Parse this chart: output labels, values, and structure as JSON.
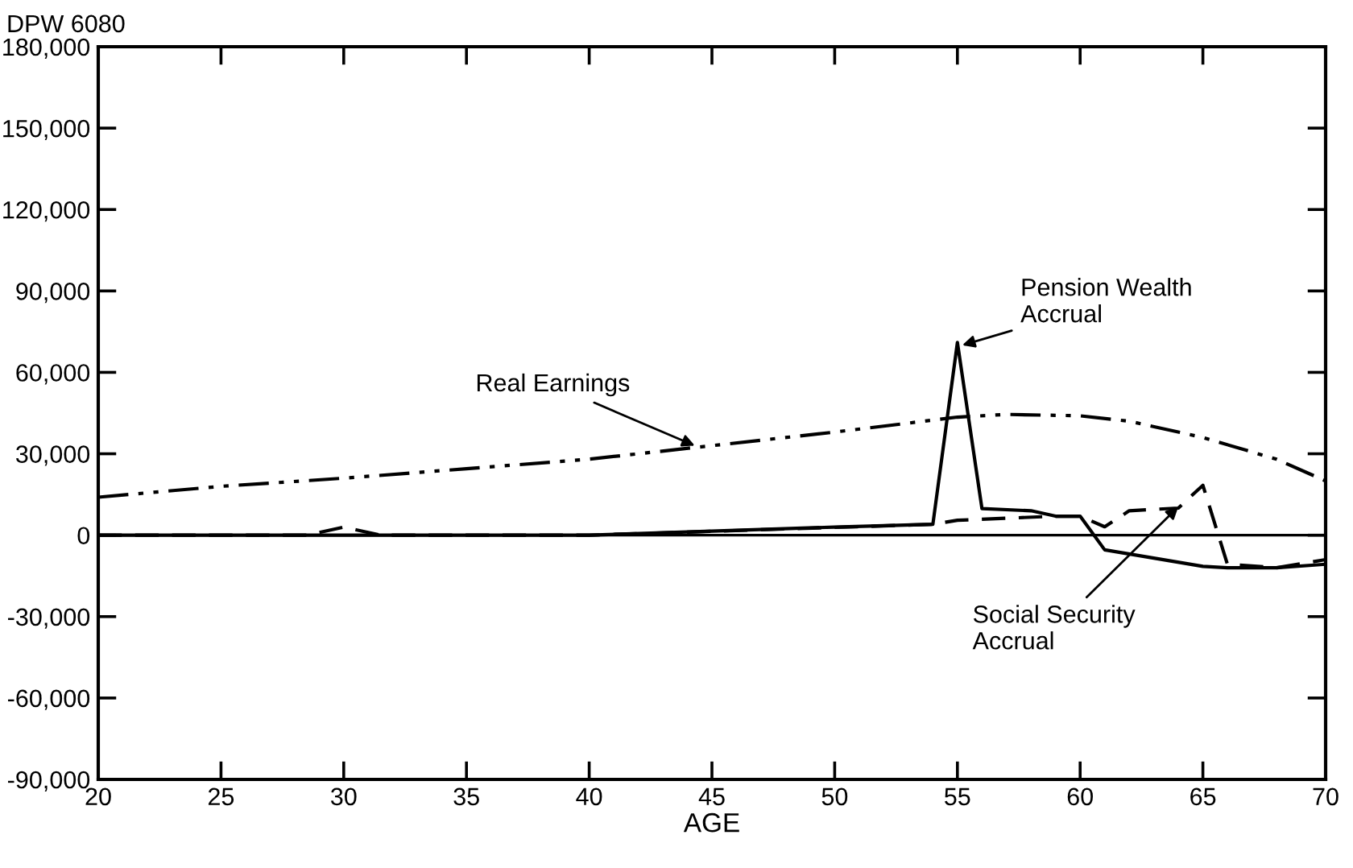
{
  "chart_data": {
    "type": "line",
    "title": "DPW 6080",
    "xlabel": "AGE",
    "xlim": [
      20,
      70
    ],
    "xticks": [
      20,
      25,
      30,
      35,
      40,
      45,
      50,
      55,
      60,
      65,
      70
    ],
    "ylim": [
      -90000,
      180000
    ],
    "yticks": [
      {
        "value": -90000,
        "label": "-90,000"
      },
      {
        "value": -60000,
        "label": "-60,000"
      },
      {
        "value": -30000,
        "label": "-30,000"
      },
      0,
      {
        "value": 30000,
        "label": "30,000"
      },
      {
        "value": 60000,
        "label": "60,000"
      },
      {
        "value": 90000,
        "label": "90,000"
      },
      {
        "value": 120000,
        "label": "120,000"
      },
      {
        "value": 150000,
        "label": "150,000"
      },
      {
        "value": 180000,
        "label": "180,000"
      }
    ],
    "grid": false,
    "legend": false,
    "ref_lines": [
      {
        "axis": "y",
        "value": 0,
        "color": "#000000",
        "line_style": "solid"
      }
    ],
    "series": [
      {
        "color": "#000000",
        "line_style": "dashdot",
        "x": [
          20,
          25,
          30,
          35,
          40,
          45,
          50,
          55,
          57,
          60,
          62,
          65,
          68,
          70
        ],
        "values": [
          14000,
          18000,
          21000,
          24500,
          28000,
          33000,
          38000,
          43500,
          44500,
          44000,
          42000,
          36000,
          28000,
          20000
        ]
      },
      {
        "color": "#000000",
        "line_style": "solid",
        "x": [
          20,
          40,
          45,
          50,
          54,
          55,
          56,
          58,
          59,
          60,
          61,
          65,
          66,
          68,
          70
        ],
        "values": [
          0,
          0,
          1500,
          3000,
          4000,
          71000,
          9800,
          9000,
          7000,
          7000,
          -5400,
          -11500,
          -12000,
          -12000,
          -10700
        ]
      },
      {
        "color": "#000000",
        "line_style": "dashed",
        "x": [
          20,
          28.5,
          29.5,
          30,
          30.5,
          31.5,
          40,
          54,
          55,
          59,
          60,
          61,
          62,
          64,
          65,
          66,
          68,
          70
        ],
        "values": [
          0,
          0,
          2000,
          3000,
          2000,
          0,
          0,
          4000,
          5500,
          7000,
          7000,
          3100,
          9000,
          10000,
          18400,
          -10700,
          -12000,
          -9000
        ]
      }
    ],
    "annotations": [
      {
        "text": "Real Earnings",
        "x": 44.3,
        "y": 33000
      },
      {
        "text": "Pension Wealth\nAccrual",
        "x": 55.2,
        "y": 70000
      },
      {
        "text": "Social Security\nAccrual",
        "x": 64,
        "y": 10500
      }
    ]
  }
}
